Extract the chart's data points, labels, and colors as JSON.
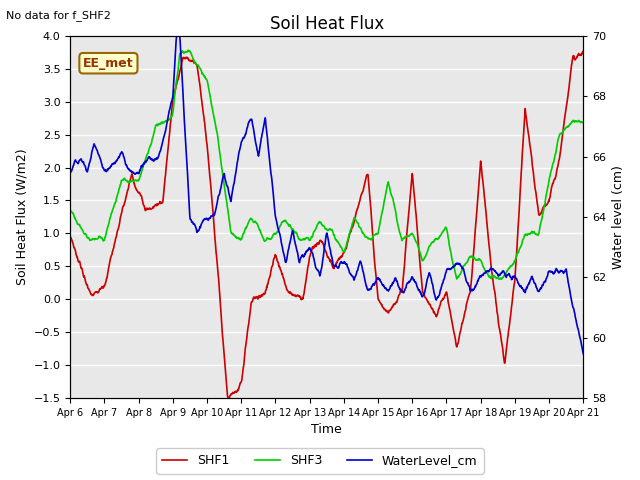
{
  "title": "Soil Heat Flux",
  "note": "No data for f_SHF2",
  "ylabel_left": "Soil Heat Flux (W/m2)",
  "ylabel_right": "Water level (cm)",
  "xlabel": "Time",
  "ylim_left": [
    -1.5,
    4.0
  ],
  "ylim_right": [
    58,
    70
  ],
  "xtick_labels": [
    "Apr 6",
    "Apr 7",
    "Apr 8",
    "Apr 9",
    "Apr 10",
    "Apr 11",
    "Apr 12",
    "Apr 13",
    "Apr 14",
    "Apr 15",
    "Apr 16",
    "Apr 17",
    "Apr 18",
    "Apr 19",
    "Apr 20",
    "Apr 21"
  ],
  "legend_labels": [
    "SHF1",
    "SHF3",
    "WaterLevel_cm"
  ],
  "colors": {
    "SHF1": "#cc0000",
    "SHF3": "#00cc00",
    "WaterLevel": "#0000cc"
  },
  "bg_color": "#e8e8e8",
  "station_label": "EE_met",
  "station_label_color": "#993300",
  "station_box_color": "#ffffcc",
  "station_box_edge": "#996600",
  "linewidth": 1.2,
  "figsize": [
    6.4,
    4.8
  ],
  "dpi": 100
}
